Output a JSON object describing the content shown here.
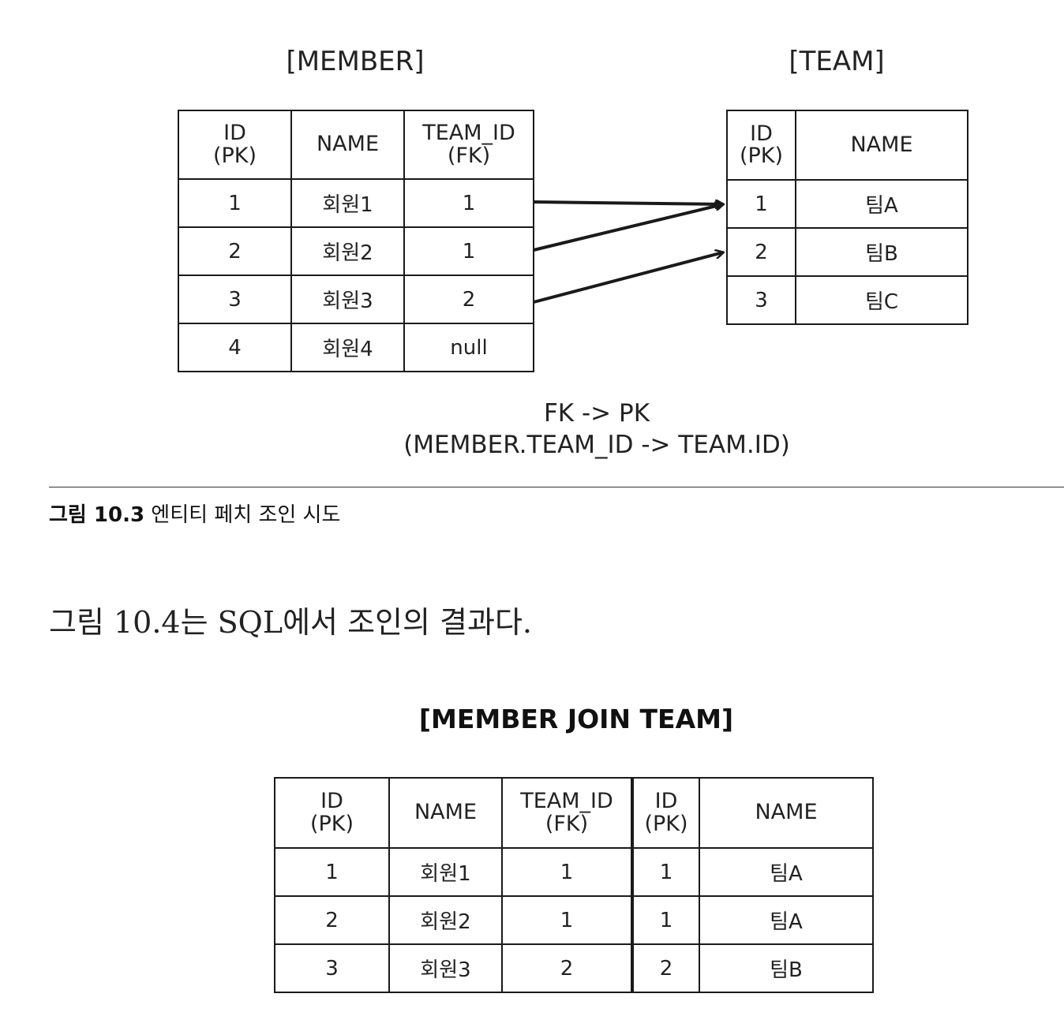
{
  "figure_top": {
    "member_table": {
      "title": "[MEMBER]",
      "headers": [
        [
          "ID",
          "(PK)"
        ],
        [
          "NAME"
        ],
        [
          "TEAM_ID",
          "(FK)"
        ]
      ],
      "rows": [
        [
          "1",
          "회원1",
          "1"
        ],
        [
          "2",
          "회원2",
          "1"
        ],
        [
          "3",
          "회원3",
          "2"
        ],
        [
          "4",
          "회원4",
          "null"
        ]
      ]
    },
    "team_table": {
      "title": "[TEAM]",
      "headers": [
        [
          "ID",
          "(PK)"
        ],
        [
          "NAME"
        ]
      ],
      "rows": [
        [
          "1",
          "팀A"
        ],
        [
          "2",
          "팀B"
        ],
        [
          "3",
          "팀C"
        ]
      ]
    },
    "fk_caption_line1": "FK -> PK",
    "fk_caption_line2": "(MEMBER.TEAM_ID -> TEAM.ID)",
    "arrow_color": "#1a1a1a"
  },
  "figure_caption": {
    "label": "그림 10.3",
    "text": " 엔티티 페치 조인 시도"
  },
  "body_text": "그림 10.4는 SQL에서 조인의 결과다.",
  "figure_bottom": {
    "title": "[MEMBER JOIN TEAM]",
    "headers": [
      [
        "ID",
        "(PK)"
      ],
      [
        "NAME"
      ],
      [
        "TEAM_ID",
        "(FK)"
      ],
      [
        "ID",
        "(PK)"
      ],
      [
        "NAME"
      ]
    ],
    "rows": [
      [
        "1",
        "회원1",
        "1",
        "1",
        "팀A"
      ],
      [
        "2",
        "회원2",
        "1",
        "1",
        "팀A"
      ],
      [
        "3",
        "회원3",
        "2",
        "2",
        "팀B"
      ]
    ]
  }
}
